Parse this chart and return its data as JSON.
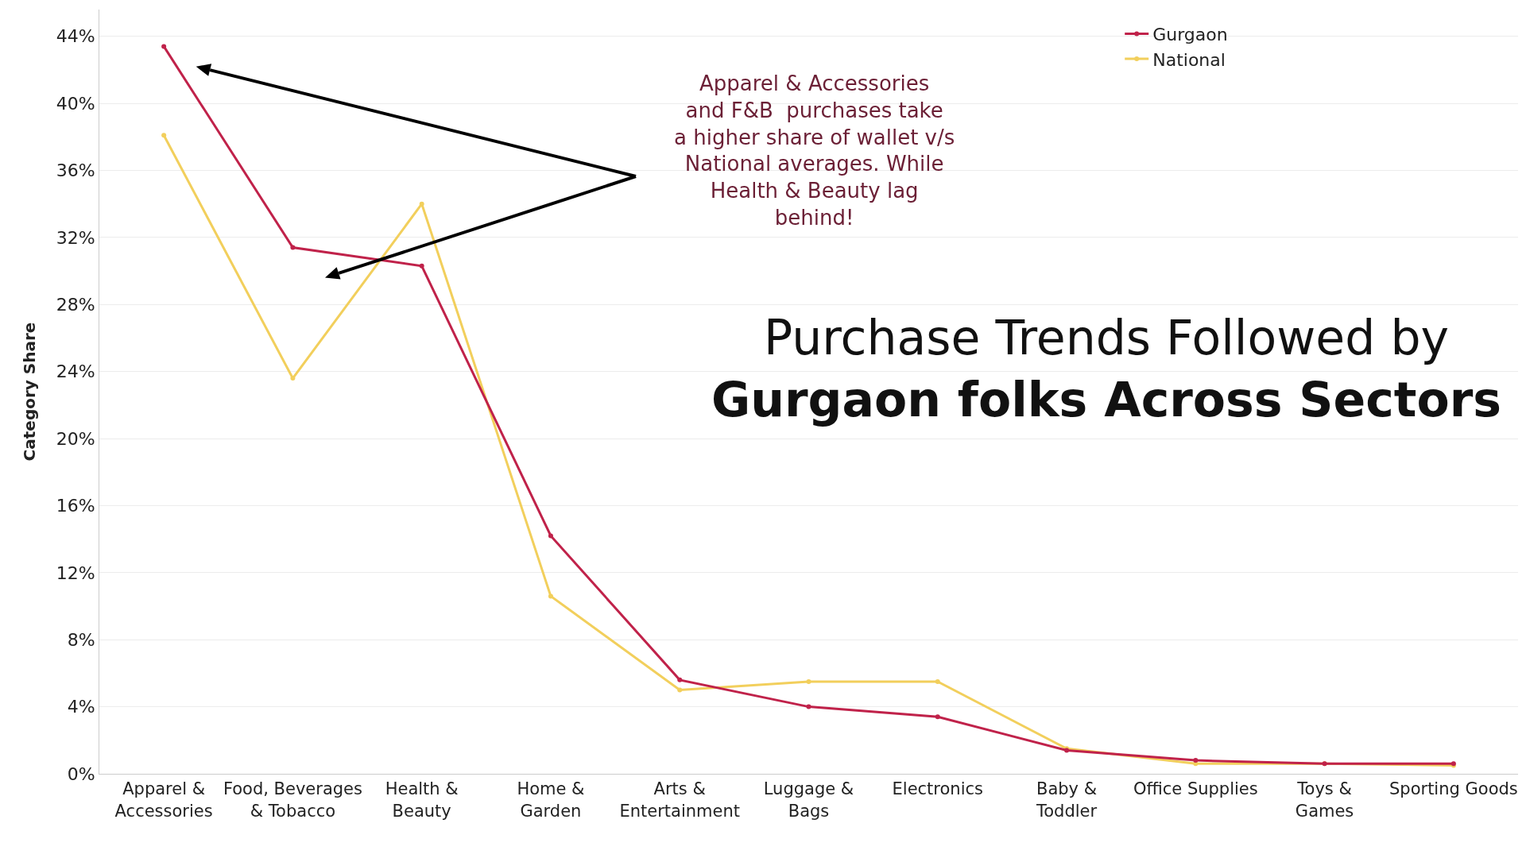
{
  "chart_data": {
    "type": "line",
    "title": "Purchase Trends Followed by Gurgaon folks Across Sectors",
    "ylabel": "Category Share",
    "categories": [
      "Apparel & Accessories",
      "Food, Beverages & Tobacco",
      "Health & Beauty",
      "Home & Garden",
      "Arts & Entertainment",
      "Luggage & Bags",
      "Electronics",
      "Baby & Toddler",
      "Office Supplies",
      "Toys & Games",
      "Sporting Goods"
    ],
    "series": [
      {
        "name": "Gurgaon",
        "color": "#c0224a",
        "values": [
          43.4,
          31.4,
          30.3,
          14.2,
          5.6,
          4.0,
          3.4,
          1.4,
          0.8,
          0.6,
          0.6
        ]
      },
      {
        "name": "National",
        "color": "#f2cf5c",
        "values": [
          38.1,
          23.6,
          34.0,
          10.6,
          5.0,
          5.5,
          5.5,
          1.5,
          0.6,
          0.6,
          0.5
        ]
      }
    ],
    "ylim": [
      0,
      45.6
    ],
    "yticks": [
      {
        "value": 0,
        "label": "0%"
      },
      {
        "value": 4,
        "label": "4%"
      },
      {
        "value": 8,
        "label": "8%"
      },
      {
        "value": 12,
        "label": "12%"
      },
      {
        "value": 16,
        "label": "16%"
      },
      {
        "value": 20,
        "label": "20%"
      },
      {
        "value": 24,
        "label": "24%"
      },
      {
        "value": 28,
        "label": "28%"
      },
      {
        "value": 32,
        "label": "32%"
      },
      {
        "value": 36,
        "label": "36%"
      },
      {
        "value": 40,
        "label": "40%"
      },
      {
        "value": 44,
        "label": "44%"
      }
    ],
    "annotations": [
      "Apparel & Accessories and F&B  purchases take a higher share of wallet v/s National averages. While Health & Beauty lag behind!"
    ],
    "grid": "y",
    "legend": "top right",
    "marker": "circle",
    "line_style": "solid"
  }
}
